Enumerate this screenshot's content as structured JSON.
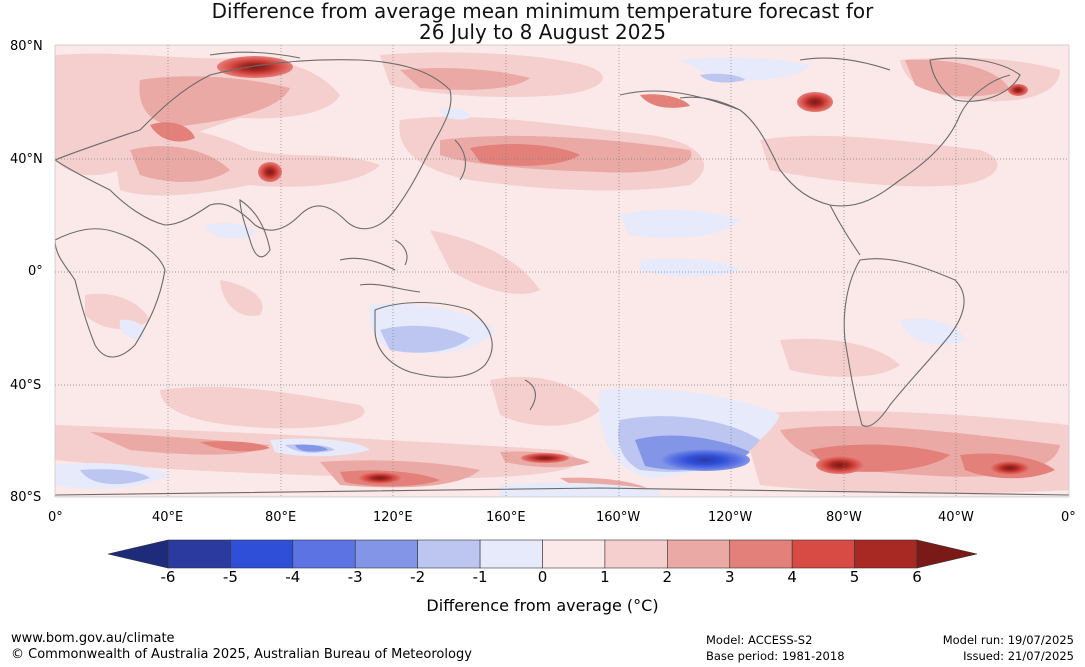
{
  "title": {
    "line1": "Difference from average mean minimum temperature forecast for",
    "line2": "26 July to 8 August 2025"
  },
  "map": {
    "projection": "equirectangular, 0° to 360° longitude centred on 180°",
    "lat_labels": [
      "80°N",
      "40°N",
      "0°",
      "40°S",
      "80°S"
    ],
    "lon_labels": [
      "0°",
      "40°E",
      "80°E",
      "120°E",
      "160°E",
      "160°W",
      "120°W",
      "80°W",
      "40°W",
      "0°"
    ],
    "background_anomaly_range": "0 to 1",
    "colors": {
      "ocean_land_base": "#fbe8e8",
      "coast": "#6b6b6b",
      "grid": "#808080"
    },
    "features": [
      {
        "name": "Australia cool anomaly",
        "range": "-2 to -1"
      },
      {
        "name": "Antarctic cool anomaly south of Pacific",
        "range": "-5 to -3"
      },
      {
        "name": "South America / South Atlantic warm anomaly",
        "range": "4 to 6"
      },
      {
        "name": "Central Asia warm anomaly",
        "range": "3 to 5"
      },
      {
        "name": "Hudson Bay warm anomaly",
        "range": "4 to 6"
      },
      {
        "name": "North Pacific warm band",
        "range": "1 to 3"
      }
    ]
  },
  "colorbar": {
    "title": "Difference from average (°C)",
    "ticks": [
      "-6",
      "-5",
      "-4",
      "-3",
      "-2",
      "-1",
      "0",
      "1",
      "2",
      "3",
      "4",
      "5",
      "6"
    ],
    "colors": [
      "#2a3a9e",
      "#2f4fd9",
      "#5b73e3",
      "#8295e7",
      "#bcc6f1",
      "#e6eafa",
      "#fbe8e8",
      "#f4cfce",
      "#eba9a5",
      "#e3807a",
      "#d84a44",
      "#a82823"
    ],
    "extend_low_color": "#1e2a7a",
    "extend_high_color": "#7a1a16"
  },
  "footer": {
    "website": "www.bom.gov.au/climate",
    "copyright": "© Commonwealth of Australia 2025, Australian Bureau of Meteorology",
    "model": "Model: ACCESS-S2",
    "base_period": "Base period: 1981-2018",
    "model_run": "Model run: 19/07/2025",
    "issued": "Issued: 21/07/2025"
  }
}
